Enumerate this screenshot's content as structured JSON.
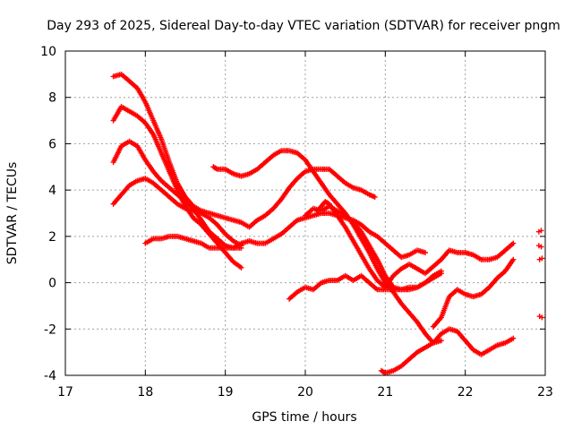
{
  "chart_data": {
    "type": "scatter",
    "title": "Day 293 of 2025, Sidereal Day-to-day VTEC variation (SDTVAR) for receiver pngm",
    "xlabel": "GPS time / hours",
    "ylabel": "SDTVAR / TECUs",
    "xlim": [
      17,
      23
    ],
    "ylim": [
      -4,
      10
    ],
    "xticks": [
      17,
      18,
      19,
      20,
      21,
      22,
      23
    ],
    "yticks": [
      -4,
      -2,
      0,
      2,
      4,
      6,
      8,
      10
    ],
    "grid": true,
    "marker": "plus",
    "color": "#ff0000",
    "series": [
      {
        "points": [
          [
            17.6,
            8.9
          ],
          [
            17.7,
            9.0
          ],
          [
            17.8,
            8.7
          ],
          [
            17.9,
            8.4
          ],
          [
            18.0,
            7.8
          ],
          [
            18.1,
            7.0
          ],
          [
            18.2,
            6.2
          ],
          [
            18.3,
            5.2
          ],
          [
            18.4,
            4.3
          ],
          [
            18.5,
            3.7
          ],
          [
            18.6,
            3.3
          ],
          [
            18.7,
            3.1
          ],
          [
            18.8,
            3.0
          ],
          [
            18.9,
            2.9
          ],
          [
            19.0,
            2.8
          ],
          [
            19.1,
            2.7
          ],
          [
            19.2,
            2.6
          ],
          [
            19.3,
            2.4
          ],
          [
            19.4,
            2.7
          ],
          [
            19.5,
            2.9
          ],
          [
            19.6,
            3.2
          ],
          [
            19.7,
            3.6
          ],
          [
            19.8,
            4.1
          ],
          [
            19.9,
            4.5
          ],
          [
            20.0,
            4.8
          ],
          [
            20.1,
            4.9
          ],
          [
            20.2,
            4.9
          ],
          [
            20.3,
            4.9
          ],
          [
            20.4,
            4.6
          ],
          [
            20.5,
            4.3
          ],
          [
            20.6,
            4.1
          ],
          [
            20.7,
            4.0
          ],
          [
            20.8,
            3.8
          ],
          [
            20.87,
            3.7
          ]
        ]
      },
      {
        "points": [
          [
            17.6,
            7.0
          ],
          [
            17.7,
            7.6
          ],
          [
            17.8,
            7.4
          ],
          [
            17.9,
            7.2
          ],
          [
            18.0,
            6.9
          ],
          [
            18.1,
            6.4
          ],
          [
            18.2,
            5.6
          ],
          [
            18.3,
            4.8
          ],
          [
            18.4,
            4.0
          ],
          [
            18.5,
            3.3
          ],
          [
            18.6,
            2.8
          ],
          [
            18.7,
            2.5
          ],
          [
            18.8,
            2.1
          ],
          [
            18.9,
            1.7
          ],
          [
            19.0,
            1.3
          ],
          [
            19.1,
            0.9
          ],
          [
            19.2,
            0.65
          ]
        ]
      },
      {
        "points": [
          [
            17.6,
            5.2
          ],
          [
            17.7,
            5.9
          ],
          [
            17.8,
            6.1
          ],
          [
            17.9,
            5.9
          ],
          [
            18.0,
            5.3
          ],
          [
            18.1,
            4.8
          ],
          [
            18.2,
            4.4
          ],
          [
            18.3,
            4.1
          ],
          [
            18.4,
            3.8
          ],
          [
            18.5,
            3.5
          ],
          [
            18.6,
            3.2
          ],
          [
            18.7,
            2.7
          ],
          [
            18.8,
            2.2
          ],
          [
            18.9,
            1.9
          ],
          [
            19.0,
            1.6
          ],
          [
            19.1,
            1.5
          ],
          [
            19.2,
            1.5
          ]
        ]
      },
      {
        "points": [
          [
            17.6,
            3.4
          ],
          [
            17.7,
            3.8
          ],
          [
            17.8,
            4.2
          ],
          [
            17.9,
            4.4
          ],
          [
            18.0,
            4.5
          ],
          [
            18.1,
            4.3
          ],
          [
            18.2,
            4.0
          ],
          [
            18.3,
            3.7
          ],
          [
            18.4,
            3.4
          ],
          [
            18.5,
            3.2
          ],
          [
            18.6,
            3.1
          ],
          [
            18.7,
            3.0
          ],
          [
            18.8,
            2.8
          ],
          [
            18.9,
            2.5
          ],
          [
            19.0,
            2.1
          ],
          [
            19.1,
            1.8
          ],
          [
            19.2,
            1.6
          ]
        ]
      },
      {
        "points": [
          [
            18.0,
            1.7
          ],
          [
            18.1,
            1.9
          ],
          [
            18.2,
            1.9
          ],
          [
            18.3,
            2.0
          ],
          [
            18.4,
            2.0
          ],
          [
            18.5,
            1.9
          ],
          [
            18.6,
            1.8
          ],
          [
            18.7,
            1.7
          ],
          [
            18.8,
            1.5
          ],
          [
            18.9,
            1.5
          ],
          [
            19.0,
            1.5
          ],
          [
            19.1,
            1.5
          ],
          [
            19.2,
            1.7
          ],
          [
            19.3,
            1.8
          ],
          [
            19.4,
            1.7
          ],
          [
            19.5,
            1.7
          ],
          [
            19.6,
            1.9
          ],
          [
            19.7,
            2.1
          ],
          [
            19.8,
            2.4
          ],
          [
            19.9,
            2.7
          ],
          [
            20.0,
            2.8
          ],
          [
            20.1,
            2.9
          ],
          [
            20.2,
            3.0
          ],
          [
            20.3,
            3.0
          ],
          [
            20.4,
            2.9
          ],
          [
            20.5,
            2.8
          ],
          [
            20.6,
            2.7
          ],
          [
            20.7,
            2.5
          ],
          [
            20.8,
            2.2
          ],
          [
            20.9,
            2.0
          ],
          [
            21.0,
            1.7
          ],
          [
            21.1,
            1.4
          ],
          [
            21.2,
            1.1
          ],
          [
            21.3,
            1.2
          ],
          [
            21.4,
            1.4
          ],
          [
            21.5,
            1.3
          ]
        ]
      },
      {
        "points": [
          [
            18.85,
            5.0
          ],
          [
            18.9,
            4.9
          ],
          [
            19.0,
            4.9
          ],
          [
            19.1,
            4.7
          ],
          [
            19.2,
            4.6
          ],
          [
            19.3,
            4.7
          ],
          [
            19.4,
            4.9
          ],
          [
            19.5,
            5.2
          ],
          [
            19.6,
            5.5
          ],
          [
            19.7,
            5.7
          ],
          [
            19.8,
            5.7
          ],
          [
            19.9,
            5.6
          ],
          [
            20.0,
            5.3
          ],
          [
            20.1,
            4.8
          ],
          [
            20.2,
            4.3
          ],
          [
            20.3,
            3.8
          ],
          [
            20.4,
            3.4
          ],
          [
            20.5,
            3.0
          ],
          [
            20.6,
            2.5
          ],
          [
            20.7,
            1.9
          ],
          [
            20.8,
            1.3
          ],
          [
            20.9,
            0.6
          ],
          [
            21.0,
            0.0
          ],
          [
            21.1,
            -0.4
          ],
          [
            21.2,
            -0.9
          ],
          [
            21.3,
            -1.3
          ],
          [
            21.4,
            -1.7
          ],
          [
            21.5,
            -2.2
          ],
          [
            21.6,
            -2.6
          ],
          [
            21.7,
            -2.5
          ]
        ]
      },
      {
        "points": [
          [
            19.8,
            -0.7
          ],
          [
            19.9,
            -0.4
          ],
          [
            20.0,
            -0.2
          ],
          [
            20.1,
            -0.3
          ],
          [
            20.2,
            0.0
          ],
          [
            20.3,
            0.1
          ],
          [
            20.4,
            0.1
          ],
          [
            20.5,
            0.3
          ],
          [
            20.6,
            0.1
          ],
          [
            20.7,
            0.3
          ],
          [
            20.8,
            0.0
          ],
          [
            20.9,
            -0.3
          ],
          [
            21.0,
            -0.3
          ],
          [
            21.1,
            -0.3
          ],
          [
            21.2,
            -0.3
          ],
          [
            21.3,
            -0.2
          ],
          [
            21.4,
            -0.2
          ],
          [
            21.5,
            0.0
          ],
          [
            21.6,
            0.3
          ],
          [
            21.7,
            0.5
          ]
        ]
      },
      {
        "points": [
          [
            20.0,
            2.9
          ],
          [
            20.1,
            3.2
          ],
          [
            20.2,
            3.1
          ],
          [
            20.3,
            3.3
          ],
          [
            20.4,
            3.1
          ],
          [
            20.5,
            2.9
          ],
          [
            20.6,
            2.6
          ],
          [
            20.7,
            2.2
          ],
          [
            20.8,
            1.6
          ],
          [
            20.9,
            1.0
          ],
          [
            21.0,
            0.3
          ],
          [
            21.1,
            -0.2
          ],
          [
            21.2,
            -0.3
          ],
          [
            21.3,
            -0.3
          ],
          [
            21.4,
            -0.2
          ],
          [
            21.5,
            0.0
          ],
          [
            21.6,
            0.2
          ],
          [
            21.7,
            0.4
          ]
        ]
      },
      {
        "points": [
          [
            20.15,
            3.1
          ],
          [
            20.2,
            3.3
          ],
          [
            20.25,
            3.5
          ],
          [
            20.3,
            3.4
          ],
          [
            20.4,
            2.9
          ],
          [
            20.5,
            2.4
          ],
          [
            20.6,
            1.8
          ],
          [
            20.7,
            1.2
          ],
          [
            20.8,
            0.6
          ],
          [
            20.9,
            0.1
          ],
          [
            21.0,
            -0.2
          ],
          [
            21.1,
            0.3
          ],
          [
            21.2,
            0.6
          ],
          [
            21.3,
            0.8
          ],
          [
            21.4,
            0.6
          ],
          [
            21.5,
            0.4
          ],
          [
            21.6,
            0.7
          ],
          [
            21.7,
            1.0
          ],
          [
            21.8,
            1.4
          ],
          [
            21.9,
            1.3
          ],
          [
            22.0,
            1.3
          ],
          [
            22.1,
            1.2
          ],
          [
            22.2,
            1.0
          ],
          [
            22.3,
            1.0
          ],
          [
            22.4,
            1.1
          ],
          [
            22.5,
            1.4
          ],
          [
            22.6,
            1.7
          ]
        ]
      },
      {
        "points": [
          [
            21.6,
            -1.9
          ],
          [
            21.7,
            -1.5
          ],
          [
            21.8,
            -0.6
          ],
          [
            21.9,
            -0.3
          ],
          [
            22.0,
            -0.5
          ],
          [
            22.1,
            -0.6
          ],
          [
            22.2,
            -0.5
          ],
          [
            22.3,
            -0.2
          ],
          [
            22.4,
            0.2
          ],
          [
            22.5,
            0.5
          ],
          [
            22.6,
            1.0
          ]
        ]
      },
      {
        "points": [
          [
            20.95,
            -3.8
          ],
          [
            21.0,
            -3.9
          ],
          [
            21.1,
            -3.8
          ],
          [
            21.2,
            -3.6
          ],
          [
            21.3,
            -3.3
          ],
          [
            21.4,
            -3.0
          ],
          [
            21.5,
            -2.8
          ],
          [
            21.6,
            -2.6
          ],
          [
            21.7,
            -2.2
          ],
          [
            21.8,
            -2.0
          ],
          [
            21.9,
            -2.1
          ],
          [
            22.0,
            -2.5
          ],
          [
            22.1,
            -2.9
          ],
          [
            22.2,
            -3.1
          ],
          [
            22.3,
            -2.9
          ],
          [
            22.4,
            -2.7
          ],
          [
            22.5,
            -2.6
          ],
          [
            22.6,
            -2.4
          ]
        ]
      },
      {
        "points": [
          [
            22.92,
            2.2
          ],
          [
            22.95,
            2.25
          ],
          [
            22.92,
            1.6
          ],
          [
            22.95,
            1.55
          ],
          [
            22.93,
            1.0
          ],
          [
            22.96,
            1.05
          ],
          [
            22.93,
            -1.45
          ],
          [
            22.96,
            -1.5
          ]
        ]
      }
    ]
  }
}
